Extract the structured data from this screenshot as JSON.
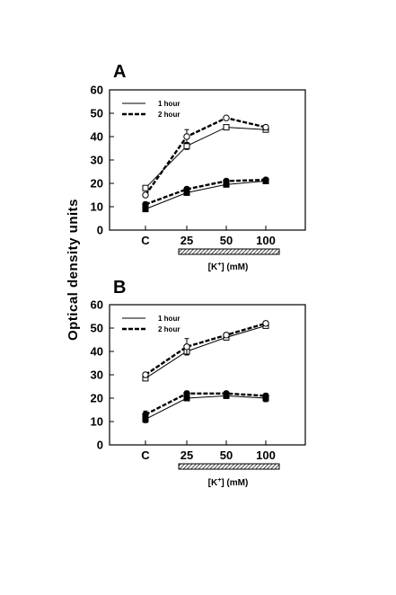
{
  "chart_data": [
    {
      "panel": "A",
      "type": "line",
      "categories": [
        "C",
        "25",
        "50",
        "100"
      ],
      "ylim": [
        0,
        60
      ],
      "yticks": [
        0,
        10,
        20,
        30,
        40,
        50,
        60
      ],
      "ylabel": "Optical density units",
      "xunit": {
        "pre": "[K",
        "sup": "+",
        "post": "] (mM)"
      },
      "legend": [
        "1 hour",
        "2 hour"
      ],
      "legend_position": "top-left",
      "grid": false,
      "series": [
        {
          "name": "1 hour",
          "marker": "open-square",
          "line": "solid",
          "values": [
            18,
            36,
            44,
            43
          ],
          "err": [
            1,
            1.5,
            0.5,
            1
          ]
        },
        {
          "name": "2 hour",
          "marker": "open-circle",
          "line": "dashed",
          "values": [
            15,
            40,
            48,
            44
          ],
          "err": [
            1,
            3,
            0.5,
            1
          ]
        },
        {
          "name": "1 hour",
          "marker": "filled-square",
          "line": "solid",
          "values": [
            9,
            16,
            19.5,
            21
          ],
          "err": [
            1,
            1,
            1,
            0.5
          ]
        },
        {
          "name": "2 hour",
          "marker": "filled-circle",
          "line": "dashed",
          "values": [
            11,
            17.5,
            21,
            21.5
          ],
          "err": [
            1,
            1,
            0.5,
            0.5
          ]
        }
      ]
    },
    {
      "panel": "B",
      "type": "line",
      "categories": [
        "C",
        "25",
        "50",
        "100"
      ],
      "ylim": [
        0,
        60
      ],
      "yticks": [
        0,
        10,
        20,
        30,
        40,
        50,
        60
      ],
      "ylabel": "Optical density units",
      "xunit": {
        "pre": "[K",
        "sup": "+",
        "post": "] (mM)"
      },
      "legend": [
        "1 hour",
        "2 hour"
      ],
      "legend_position": "top-left",
      "grid": false,
      "series": [
        {
          "name": "1 hour",
          "marker": "open-square",
          "line": "solid",
          "values": [
            28.5,
            40,
            46,
            51
          ],
          "err": [
            1,
            1.5,
            1,
            1
          ]
        },
        {
          "name": "2 hour",
          "marker": "open-circle",
          "line": "dashed",
          "values": [
            30,
            42,
            47,
            52
          ],
          "err": [
            1,
            3.5,
            1,
            1
          ]
        },
        {
          "name": "1 hour",
          "marker": "filled-square",
          "line": "solid",
          "values": [
            11,
            20,
            21,
            20
          ],
          "err": [
            1.5,
            1,
            0.5,
            1.5
          ]
        },
        {
          "name": "2 hour",
          "marker": "filled-circle",
          "line": "dashed",
          "values": [
            13,
            22,
            22,
            21
          ],
          "err": [
            1.5,
            1,
            0.5,
            1
          ]
        }
      ]
    }
  ]
}
